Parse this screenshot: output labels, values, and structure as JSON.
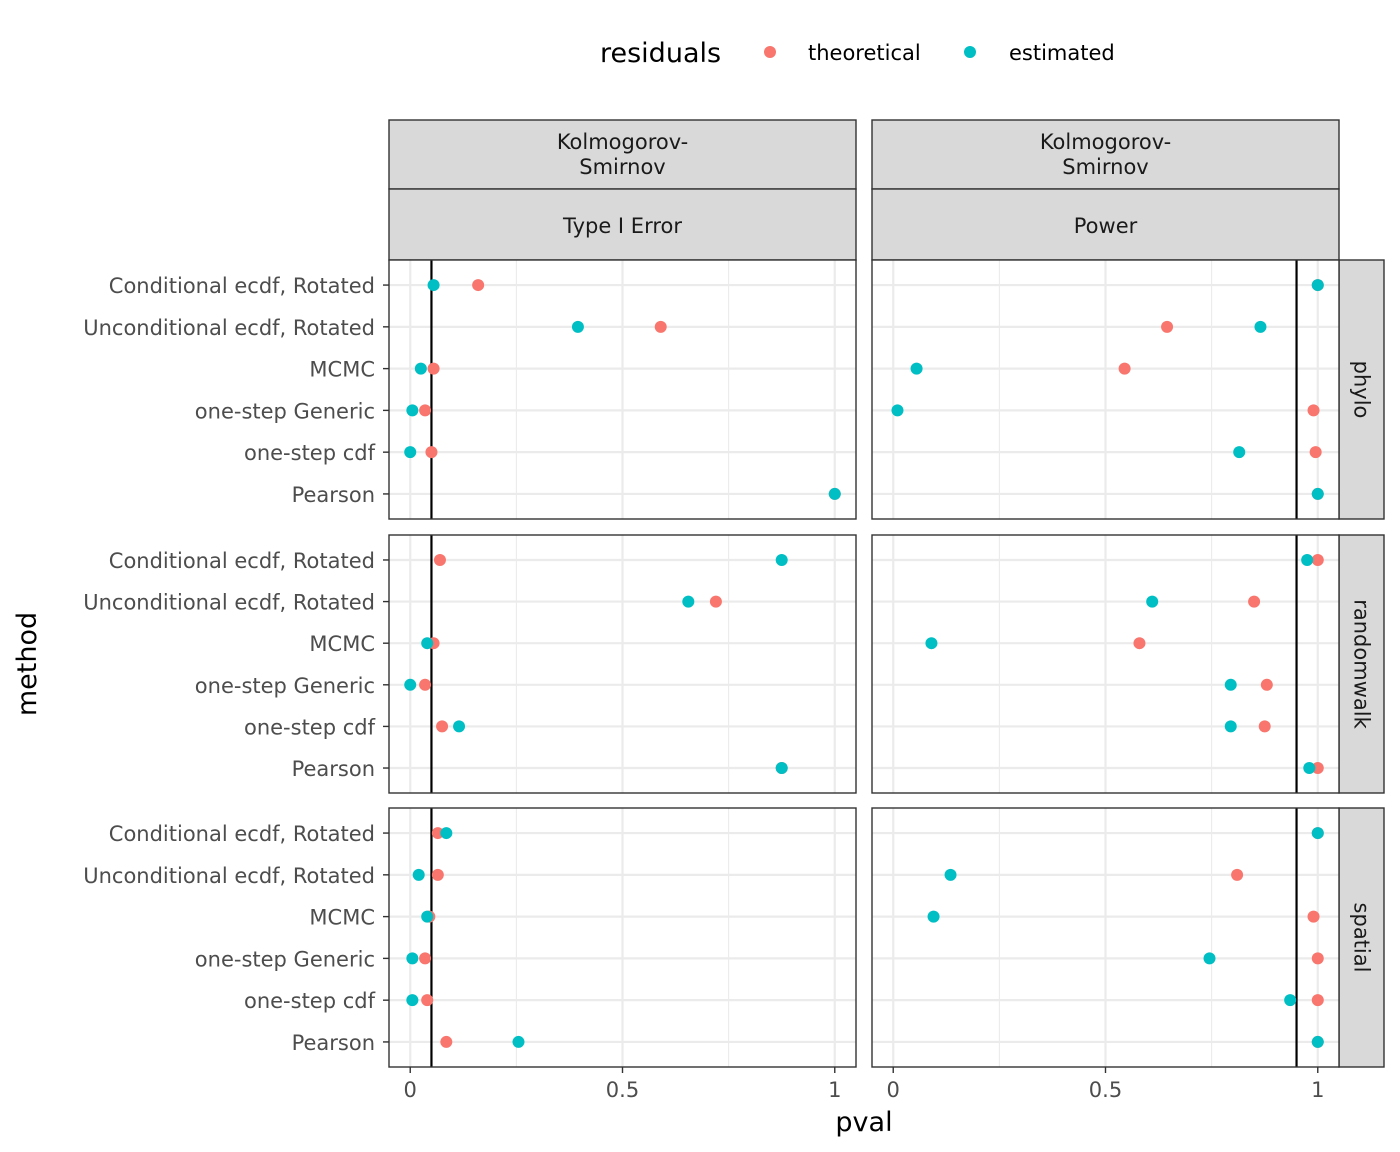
{
  "chart_data": {
    "type": "scatter",
    "xlabel": "pval",
    "ylabel": "method",
    "xlim": [
      -0.05,
      1.05
    ],
    "x_ticks": [
      0,
      0.5,
      1
    ],
    "x_tick_labels": [
      "0",
      "0.5",
      "1"
    ],
    "legend": {
      "title": "residuals",
      "position": "top",
      "entries": [
        {
          "name": "theoretical",
          "color": "#F8766D"
        },
        {
          "name": "estimated",
          "color": "#00BFC4"
        }
      ]
    },
    "methods": [
      "Conditional ecdf, Rotated",
      "Unconditional ecdf, Rotated",
      "MCMC",
      "one-step Generic",
      "one-step cdf",
      "Pearson"
    ],
    "columns": [
      {
        "strip1": "Kolmogorov-\nSmirnov",
        "strip2": "Type I Error",
        "ref_line": 0.05
      },
      {
        "strip1": "Kolmogorov-\nSmirnov",
        "strip2": "Power",
        "ref_line": 0.95
      }
    ],
    "rows": [
      "phylo",
      "randomwalk",
      "spatial"
    ],
    "panels": [
      {
        "row": "phylo",
        "column": "Type I Error",
        "series": [
          {
            "name": "theoretical",
            "values": [
              0.16,
              0.59,
              0.055,
              0.035,
              0.05,
              1.0
            ]
          },
          {
            "name": "estimated",
            "values": [
              0.055,
              0.395,
              0.025,
              0.005,
              0.0,
              1.0
            ]
          }
        ]
      },
      {
        "row": "phylo",
        "column": "Power",
        "series": [
          {
            "name": "theoretical",
            "values": [
              1.0,
              0.645,
              0.545,
              0.99,
              0.995,
              1.0
            ]
          },
          {
            "name": "estimated",
            "values": [
              1.0,
              0.865,
              0.055,
              0.01,
              0.815,
              1.0
            ]
          }
        ]
      },
      {
        "row": "randomwalk",
        "column": "Type I Error",
        "series": [
          {
            "name": "theoretical",
            "values": [
              0.07,
              0.72,
              0.055,
              0.035,
              0.075,
              0.875
            ]
          },
          {
            "name": "estimated",
            "values": [
              0.875,
              0.655,
              0.04,
              0.0,
              0.115,
              0.875
            ]
          }
        ]
      },
      {
        "row": "randomwalk",
        "column": "Power",
        "series": [
          {
            "name": "theoretical",
            "values": [
              1.0,
              0.85,
              0.58,
              0.88,
              0.875,
              1.0
            ]
          },
          {
            "name": "estimated",
            "values": [
              0.975,
              0.61,
              0.09,
              0.795,
              0.795,
              0.98
            ]
          }
        ]
      },
      {
        "row": "spatial",
        "column": "Type I Error",
        "series": [
          {
            "name": "theoretical",
            "values": [
              0.065,
              0.065,
              0.045,
              0.035,
              0.04,
              0.085
            ]
          },
          {
            "name": "estimated",
            "values": [
              0.085,
              0.02,
              0.04,
              0.005,
              0.005,
              0.255
            ]
          }
        ]
      },
      {
        "row": "spatial",
        "column": "Power",
        "series": [
          {
            "name": "theoretical",
            "values": [
              1.0,
              0.81,
              0.99,
              1.0,
              1.0,
              1.0
            ]
          },
          {
            "name": "estimated",
            "values": [
              1.0,
              0.135,
              0.095,
              0.745,
              0.935,
              1.0
            ]
          }
        ]
      }
    ]
  }
}
